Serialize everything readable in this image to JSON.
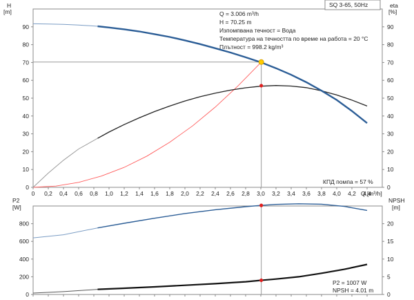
{
  "chart_data": [
    {
      "type": "line",
      "panel": "upper",
      "xlabel": "Q [m³/h]",
      "ylabel_left": [
        "H",
        "[m]"
      ],
      "ylabel_right": [
        "eta",
        "[%]"
      ],
      "xlim": [
        0,
        4.6
      ],
      "ylim_left": [
        0,
        100
      ],
      "ylim_right": [
        0,
        100
      ],
      "x_ticks": [
        "0",
        "0,2",
        "0,4",
        "0,6",
        "0,8",
        "1,0",
        "1,2",
        "1,4",
        "1,6",
        "1,8",
        "2,0",
        "2,2",
        "2,4",
        "2,6",
        "2,8",
        "3,0",
        "3,2",
        "3,4",
        "3,6",
        "3,8",
        "4,0",
        "4,2",
        "4,4"
      ],
      "y_ticks_left": [
        0,
        10,
        20,
        30,
        40,
        50,
        60,
        70,
        80,
        90
      ],
      "y_ticks_right": [
        0,
        10,
        20,
        30,
        40,
        50,
        60,
        70,
        80,
        90
      ],
      "grid": false,
      "model_box": "SQ 3-65, 50Hz",
      "info_lines": [
        "Q = 3.006 m³/h",
        "H = 70.25 m",
        "Изпомпвана течност = Вода",
        "Температура на течността по време на работа = 20 °C",
        "Плътност = 998.2 kg/m³"
      ],
      "efficiency_label": "КПД помпа = 57 %",
      "series": [
        {
          "id": "head",
          "color": "#2b5d96",
          "points": [
            [
              0,
              91.7
            ],
            [
              0.2,
              91.6
            ],
            [
              0.4,
              91.4
            ],
            [
              0.6,
              91.0
            ],
            [
              0.85,
              90.3
            ],
            [
              1.0,
              89.6
            ],
            [
              1.2,
              88.6
            ],
            [
              1.4,
              87.4
            ],
            [
              1.6,
              85.9
            ],
            [
              1.8,
              84.3
            ],
            [
              2.0,
              82.4
            ],
            [
              2.2,
              80.3
            ],
            [
              2.4,
              78.0
            ],
            [
              2.6,
              75.6
            ],
            [
              2.8,
              72.9
            ],
            [
              3.0,
              70.1
            ],
            [
              3.2,
              66.8
            ],
            [
              3.4,
              63.1
            ],
            [
              3.6,
              58.9
            ],
            [
              3.8,
              54.2
            ],
            [
              4.0,
              49.0
            ],
            [
              4.2,
              42.8
            ],
            [
              4.4,
              36.0
            ]
          ]
        },
        {
          "id": "efficiency",
          "color": "#222222",
          "points": [
            [
              0,
              0
            ],
            [
              0.2,
              8.0
            ],
            [
              0.4,
              15.2
            ],
            [
              0.6,
              21.5
            ],
            [
              0.85,
              27.5
            ],
            [
              1.0,
              31.0
            ],
            [
              1.2,
              35.2
            ],
            [
              1.4,
              39.0
            ],
            [
              1.6,
              42.5
            ],
            [
              1.8,
              45.6
            ],
            [
              2.0,
              48.4
            ],
            [
              2.2,
              50.8
            ],
            [
              2.4,
              52.8
            ],
            [
              2.6,
              54.5
            ],
            [
              2.8,
              55.8
            ],
            [
              3.0,
              56.7
            ],
            [
              3.2,
              57.1
            ],
            [
              3.4,
              56.8
            ],
            [
              3.6,
              55.9
            ],
            [
              3.8,
              54.1
            ],
            [
              4.0,
              51.8
            ],
            [
              4.2,
              48.9
            ],
            [
              4.4,
              45.6
            ]
          ]
        },
        {
          "id": "system-curve",
          "color": "#ff5a5a",
          "points": [
            [
              0,
              0
            ],
            [
              0.3,
              0.7
            ],
            [
              0.6,
              2.8
            ],
            [
              0.9,
              6.3
            ],
            [
              1.2,
              11.2
            ],
            [
              1.5,
              17.5
            ],
            [
              1.8,
              25.3
            ],
            [
              2.1,
              34.4
            ],
            [
              2.4,
              45.0
            ],
            [
              2.7,
              56.9
            ],
            [
              3.006,
              70.25
            ]
          ]
        }
      ],
      "duty_point_head": [
        3.006,
        70.25
      ],
      "duty_point_efficiency": [
        3.006,
        57
      ]
    },
    {
      "type": "line",
      "panel": "lower",
      "ylabel_left": [
        "P2",
        "[W]"
      ],
      "ylabel_right": [
        "NPSH",
        "[m]"
      ],
      "xlim": [
        0,
        4.6
      ],
      "ylim_left": [
        0,
        1000
      ],
      "ylim_right": [
        0,
        25
      ],
      "y_ticks_left": [
        0,
        200,
        400,
        600,
        800
      ],
      "y_ticks_right": [
        0,
        5,
        10,
        15,
        20
      ],
      "power_label": "P2 = 1007 W",
      "npsh_label": "NPSH = 4.01 m",
      "series": [
        {
          "id": "power",
          "color": "#2b5d96",
          "axis": "left",
          "points": [
            [
              0,
              640
            ],
            [
              0.4,
              675
            ],
            [
              0.85,
              752
            ],
            [
              1.2,
              805
            ],
            [
              1.6,
              862
            ],
            [
              2.0,
              915
            ],
            [
              2.4,
              958
            ],
            [
              2.8,
              992
            ],
            [
              3.006,
              1007
            ],
            [
              3.2,
              1018
            ],
            [
              3.5,
              1025
            ],
            [
              3.8,
              1020
            ],
            [
              4.1,
              995
            ],
            [
              4.4,
              950
            ]
          ]
        },
        {
          "id": "npsh",
          "color": "#111111",
          "axis": "right",
          "points": [
            [
              0,
              0.4
            ],
            [
              0.4,
              0.8
            ],
            [
              0.85,
              1.45
            ],
            [
              1.2,
              1.75
            ],
            [
              1.6,
              2.15
            ],
            [
              2.0,
              2.6
            ],
            [
              2.4,
              3.05
            ],
            [
              2.8,
              3.6
            ],
            [
              3.006,
              4.01
            ],
            [
              3.2,
              4.35
            ],
            [
              3.5,
              5.0
            ],
            [
              3.8,
              6.0
            ],
            [
              4.1,
              7.1
            ],
            [
              4.4,
              8.5
            ]
          ]
        }
      ],
      "duty_point_power": [
        3.006,
        1007
      ],
      "duty_point_npsh": [
        3.006,
        4.01
      ]
    }
  ]
}
